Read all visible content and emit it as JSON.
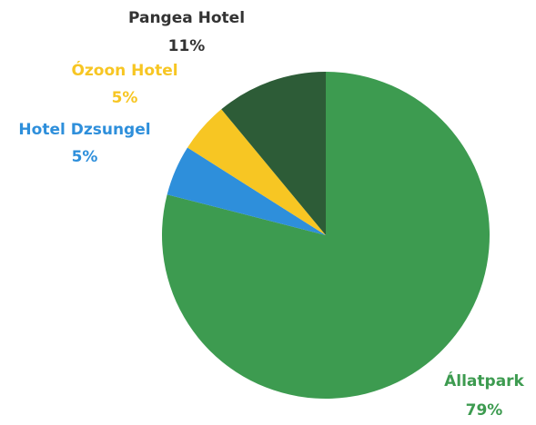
{
  "chart_data": {
    "type": "pie",
    "categories": [
      "Állatpark",
      "Hotel Dzsungel",
      "Ózoon Hotel",
      "Pangea Hotel"
    ],
    "values": [
      79,
      5,
      5,
      11
    ],
    "value_labels": [
      "79%",
      "5%",
      "5%",
      "11%"
    ],
    "colors": [
      "#3d9b50",
      "#2e8fdb",
      "#f7c623",
      "#2d5c37"
    ],
    "label_colors": [
      "#3d9b50",
      "#2e8fdb",
      "#f7c623",
      "#333333"
    ]
  }
}
